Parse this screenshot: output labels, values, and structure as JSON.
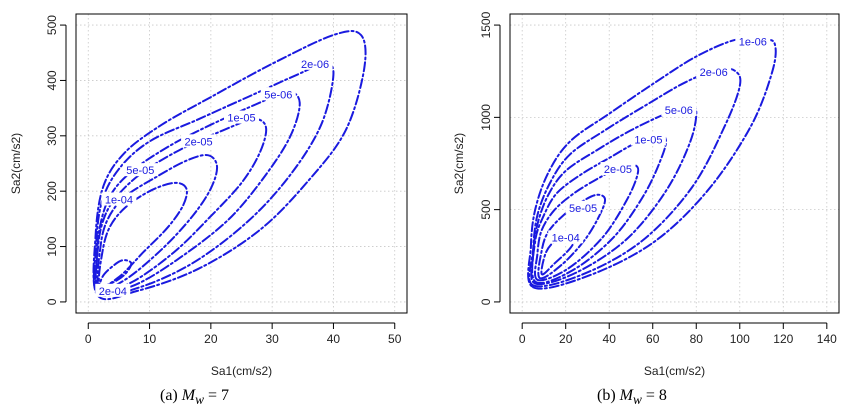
{
  "figure": {
    "contour_color": "#1a1adf",
    "captions": [
      {
        "tag": "(a)",
        "symbol": "M",
        "subscript": "w",
        "relation": "= 7"
      },
      {
        "tag": "(b)",
        "symbol": "M",
        "subscript": "w",
        "relation": "= 8"
      }
    ]
  },
  "chart_data": [
    {
      "type": "contour",
      "xlabel": "Sa1(cm/s2)",
      "ylabel": "Sa2(cm/s2)",
      "xlim": [
        0,
        50
      ],
      "ylim": [
        0,
        500
      ],
      "xticks": [
        0,
        10,
        20,
        30,
        40,
        50
      ],
      "yticks": [
        0,
        100,
        200,
        300,
        400,
        500
      ],
      "grid": true,
      "series": [
        {
          "name": "2e-06",
          "label_at": [
            37,
            430
          ],
          "points": [
            [
              1.5,
              12
            ],
            [
              8,
              20
            ],
            [
              18,
              60
            ],
            [
              28,
              130
            ],
            [
              36,
              220
            ],
            [
              42,
              310
            ],
            [
              45,
              420
            ],
            [
              44.5,
              482
            ],
            [
              40,
              482
            ],
            [
              30,
              430
            ],
            [
              20,
              370
            ],
            [
              12,
              320
            ],
            [
              6,
              270
            ],
            [
              2.5,
              210
            ],
            [
              1.2,
              120
            ],
            [
              1.5,
              12
            ]
          ]
        },
        {
          "name": "5e-06",
          "label_at": [
            31,
            375
          ],
          "points": [
            [
              1.5,
              16
            ],
            [
              8,
              25
            ],
            [
              17,
              70
            ],
            [
              26,
              145
            ],
            [
              33,
              230
            ],
            [
              38,
              320
            ],
            [
              40,
              410
            ],
            [
              38.5,
              430
            ],
            [
              34,
              410
            ],
            [
              26,
              370
            ],
            [
              18,
              330
            ],
            [
              10,
              290
            ],
            [
              5,
              240
            ],
            [
              2.2,
              180
            ],
            [
              1.3,
              100
            ],
            [
              1.5,
              16
            ]
          ]
        },
        {
          "name": "1e-05",
          "label_at": [
            25,
            333
          ],
          "points": [
            [
              1.6,
              18
            ],
            [
              7.5,
              30
            ],
            [
              15,
              80
            ],
            [
              23,
              150
            ],
            [
              29,
              230
            ],
            [
              33,
              300
            ],
            [
              34.5,
              360
            ],
            [
              32.5,
              380
            ],
            [
              28,
              360
            ],
            [
              20,
              320
            ],
            [
              13,
              280
            ],
            [
              7,
              235
            ],
            [
              3.5,
              190
            ],
            [
              1.8,
              130
            ],
            [
              1.4,
              70
            ],
            [
              1.6,
              18
            ]
          ]
        },
        {
          "name": "2e-05",
          "label_at": [
            18,
            290
          ],
          "points": [
            [
              1.7,
              20
            ],
            [
              7,
              35
            ],
            [
              14,
              90
            ],
            [
              20,
              155
            ],
            [
              25,
              215
            ],
            [
              28,
              270
            ],
            [
              29,
              315
            ],
            [
              27,
              330
            ],
            [
              22,
              310
            ],
            [
              15,
              275
            ],
            [
              9,
              235
            ],
            [
              5,
              195
            ],
            [
              2.7,
              155
            ],
            [
              1.6,
              100
            ],
            [
              1.7,
              20
            ]
          ]
        },
        {
          "name": "5e-05",
          "label_at": [
            8.5,
            238
          ],
          "points": [
            [
              1.8,
              25
            ],
            [
              6,
              40
            ],
            [
              12,
              95
            ],
            [
              17,
              155
            ],
            [
              20,
              205
            ],
            [
              21,
              245
            ],
            [
              19.5,
              265
            ],
            [
              16,
              255
            ],
            [
              11,
              225
            ],
            [
              6,
              190
            ],
            [
              3.2,
              150
            ],
            [
              2,
              100
            ],
            [
              1.8,
              25
            ]
          ]
        },
        {
          "name": "1e-04",
          "label_at": [
            5,
            185
          ],
          "points": [
            [
              1.9,
              30
            ],
            [
              5,
              45
            ],
            [
              9,
              90
            ],
            [
              13,
              135
            ],
            [
              15.5,
              175
            ],
            [
              16,
              205
            ],
            [
              14,
              215
            ],
            [
              10,
              200
            ],
            [
              6,
              170
            ],
            [
              3.5,
              135
            ],
            [
              2.3,
              90
            ],
            [
              1.9,
              30
            ]
          ]
        },
        {
          "name": "2e-04",
          "label_at": [
            4,
            20
          ],
          "points": [
            [
              2,
              28
            ],
            [
              4,
              35
            ],
            [
              6,
              50
            ],
            [
              7,
              70
            ],
            [
              5.5,
              75
            ],
            [
              3.5,
              60
            ],
            [
              2.3,
              45
            ],
            [
              2,
              28
            ]
          ]
        }
      ]
    },
    {
      "type": "contour",
      "xlabel": "Sa1(cm/s2)",
      "ylabel": "Sa2(cm/s2)",
      "xlim": [
        0,
        140
      ],
      "ylim": [
        0,
        1500
      ],
      "xticks": [
        0,
        20,
        40,
        60,
        80,
        100,
        120,
        140
      ],
      "yticks": [
        0,
        500,
        1000,
        1500
      ],
      "grid": true,
      "series": [
        {
          "name": "1e-06",
          "label_at": [
            106,
            1410
          ],
          "points": [
            [
              5,
              80
            ],
            [
              30,
              140
            ],
            [
              60,
              320
            ],
            [
              85,
              600
            ],
            [
              105,
              950
            ],
            [
              115,
              1250
            ],
            [
              116,
              1400
            ],
            [
              110,
              1420
            ],
            [
              98,
              1420
            ],
            [
              80,
              1330
            ],
            [
              60,
              1180
            ],
            [
              40,
              1020
            ],
            [
              22,
              870
            ],
            [
              12,
              700
            ],
            [
              6,
              500
            ],
            [
              4,
              300
            ],
            [
              5,
              80
            ]
          ]
        },
        {
          "name": "2e-06",
          "label_at": [
            88,
            1245
          ],
          "points": [
            [
              5,
              90
            ],
            [
              28,
              150
            ],
            [
              55,
              330
            ],
            [
              78,
              620
            ],
            [
              93,
              950
            ],
            [
              100,
              1170
            ],
            [
              98,
              1250
            ],
            [
              90,
              1260
            ],
            [
              75,
              1190
            ],
            [
              56,
              1060
            ],
            [
              38,
              930
            ],
            [
              22,
              800
            ],
            [
              13,
              650
            ],
            [
              7,
              470
            ],
            [
              5,
              280
            ],
            [
              5,
              90
            ]
          ]
        },
        {
          "name": "5e-06",
          "label_at": [
            72,
            1040
          ],
          "points": [
            [
              6,
              100
            ],
            [
              25,
              160
            ],
            [
              48,
              340
            ],
            [
              66,
              600
            ],
            [
              77,
              860
            ],
            [
              80,
              1030
            ],
            [
              76,
              1060
            ],
            [
              66,
              1020
            ],
            [
              50,
              930
            ],
            [
              34,
              820
            ],
            [
              20,
              710
            ],
            [
              12,
              580
            ],
            [
              7,
              420
            ],
            [
              5,
              250
            ],
            [
              6,
              100
            ]
          ]
        },
        {
          "name": "1e-05",
          "label_at": [
            58,
            880
          ],
          "points": [
            [
              6,
              110
            ],
            [
              23,
              170
            ],
            [
              42,
              350
            ],
            [
              56,
              580
            ],
            [
              64,
              780
            ],
            [
              66,
              880
            ],
            [
              62,
              900
            ],
            [
              52,
              860
            ],
            [
              40,
              780
            ],
            [
              27,
              690
            ],
            [
              16,
              590
            ],
            [
              10,
              470
            ],
            [
              6,
              330
            ],
            [
              6,
              110
            ]
          ]
        },
        {
          "name": "2e-05",
          "label_at": [
            44,
            720
          ],
          "points": [
            [
              7,
              120
            ],
            [
              21,
              180
            ],
            [
              37,
              350
            ],
            [
              48,
              550
            ],
            [
              53,
              690
            ],
            [
              52,
              740
            ],
            [
              45,
              730
            ],
            [
              35,
              670
            ],
            [
              24,
              590
            ],
            [
              15,
              500
            ],
            [
              9,
              390
            ],
            [
              7,
              260
            ],
            [
              7,
              120
            ]
          ]
        },
        {
          "name": "5e-05",
          "label_at": [
            28,
            510
          ],
          "points": [
            [
              8,
              130
            ],
            [
              18,
              200
            ],
            [
              29,
              340
            ],
            [
              36,
              480
            ],
            [
              38,
              560
            ],
            [
              34,
              580
            ],
            [
              27,
              540
            ],
            [
              19,
              470
            ],
            [
              12,
              380
            ],
            [
              9,
              280
            ],
            [
              8,
              130
            ]
          ]
        },
        {
          "name": "1e-04",
          "label_at": [
            20,
            350
          ],
          "points": [
            [
              9,
              150
            ],
            [
              15,
              210
            ],
            [
              22,
              290
            ],
            [
              25,
              360
            ],
            [
              22,
              380
            ],
            [
              16,
              340
            ],
            [
              11,
              270
            ],
            [
              9,
              150
            ]
          ]
        }
      ]
    }
  ]
}
